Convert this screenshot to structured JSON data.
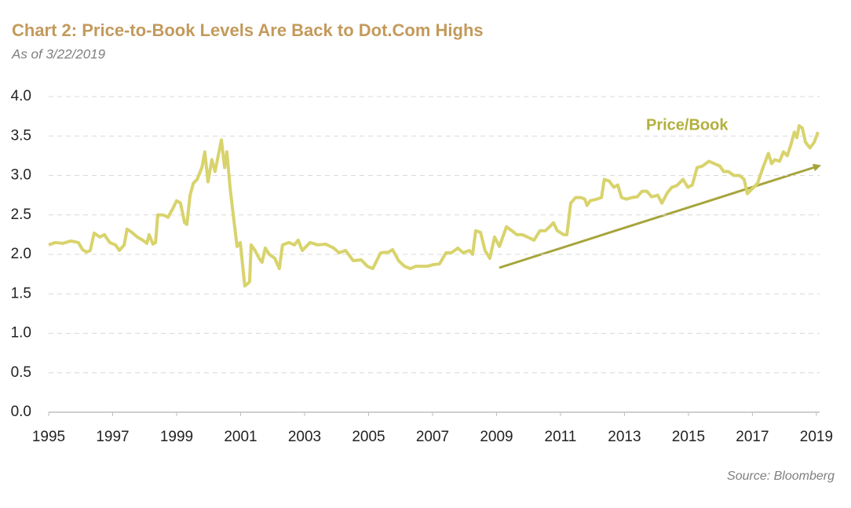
{
  "chart_data": {
    "type": "line",
    "title": "Chart 2: Price-to-Book Levels Are Back to Dot.Com Highs",
    "subtitle": "As of 3/22/2019",
    "source": "Source: Bloomberg",
    "annotation": "Price/Book",
    "series": [
      {
        "name": "Price/Book",
        "color": "#d8d36c",
        "x": [
          1995.0,
          1995.2,
          1995.44,
          1995.69,
          1995.93,
          1996.06,
          1996.18,
          1996.3,
          1996.42,
          1996.6,
          1996.74,
          1996.91,
          1997.09,
          1997.21,
          1997.36,
          1997.45,
          1997.6,
          1997.77,
          1997.94,
          1998.07,
          1998.14,
          1998.26,
          1998.34,
          1998.41,
          1998.58,
          1998.73,
          1998.88,
          1999.0,
          1999.12,
          1999.25,
          1999.32,
          1999.42,
          1999.52,
          1999.64,
          1999.79,
          1999.88,
          1999.98,
          2000.1,
          2000.2,
          2000.3,
          2000.4,
          2000.5,
          2000.57,
          2000.67,
          2000.77,
          2000.89,
          2000.99,
          2001.13,
          2001.28,
          2001.33,
          2001.45,
          2001.58,
          2001.67,
          2001.77,
          2001.9,
          2002.07,
          2002.21,
          2002.31,
          2002.51,
          2002.68,
          2002.8,
          2002.93,
          2003.17,
          2003.42,
          2003.66,
          2003.91,
          2004.08,
          2004.28,
          2004.52,
          2004.77,
          2004.96,
          2005.13,
          2005.38,
          2005.63,
          2005.75,
          2005.94,
          2006.12,
          2006.31,
          2006.48,
          2006.85,
          2007.02,
          2007.22,
          2007.42,
          2007.59,
          2007.79,
          2007.96,
          2008.15,
          2008.25,
          2008.35,
          2008.5,
          2008.64,
          2008.79,
          2008.94,
          2009.09,
          2009.31,
          2009.48,
          2009.63,
          2009.8,
          2009.97,
          2010.17,
          2010.36,
          2010.53,
          2010.66,
          2010.78,
          2010.9,
          2011.1,
          2011.2,
          2011.32,
          2011.47,
          2011.64,
          2011.76,
          2011.83,
          2011.93,
          2012.13,
          2012.28,
          2012.37,
          2012.52,
          2012.67,
          2012.79,
          2012.91,
          2013.06,
          2013.23,
          2013.4,
          2013.55,
          2013.7,
          2013.85,
          2014.04,
          2014.17,
          2014.34,
          2014.48,
          2014.63,
          2014.83,
          2014.98,
          2015.12,
          2015.27,
          2015.44,
          2015.64,
          2015.81,
          2015.98,
          2016.1,
          2016.25,
          2016.42,
          2016.6,
          2016.74,
          2016.84,
          2016.99,
          2017.16,
          2017.33,
          2017.5,
          2017.6,
          2017.7,
          2017.85,
          2017.97,
          2018.09,
          2018.21,
          2018.31,
          2018.39,
          2018.46,
          2018.56,
          2018.66,
          2018.8,
          2018.93,
          2019.05
        ],
        "values": [
          2.12,
          2.15,
          2.14,
          2.17,
          2.15,
          2.06,
          2.03,
          2.05,
          2.27,
          2.22,
          2.25,
          2.15,
          2.12,
          2.05,
          2.12,
          2.32,
          2.28,
          2.22,
          2.18,
          2.14,
          2.25,
          2.13,
          2.15,
          2.5,
          2.5,
          2.47,
          2.58,
          2.68,
          2.65,
          2.4,
          2.38,
          2.75,
          2.9,
          2.95,
          3.1,
          3.3,
          2.92,
          3.2,
          3.05,
          3.25,
          3.45,
          3.1,
          3.3,
          2.85,
          2.5,
          2.1,
          2.15,
          1.6,
          1.65,
          2.12,
          2.05,
          1.95,
          1.9,
          2.08,
          2.0,
          1.95,
          1.82,
          2.12,
          2.15,
          2.12,
          2.18,
          2.05,
          2.15,
          2.12,
          2.13,
          2.08,
          2.02,
          2.05,
          1.92,
          1.93,
          1.85,
          1.82,
          2.02,
          2.03,
          2.06,
          1.92,
          1.85,
          1.82,
          1.85,
          1.85,
          1.87,
          1.88,
          2.02,
          2.02,
          2.08,
          2.02,
          2.05,
          2.0,
          2.3,
          2.28,
          2.05,
          1.95,
          2.22,
          2.1,
          2.35,
          2.3,
          2.25,
          2.25,
          2.22,
          2.18,
          2.3,
          2.3,
          2.35,
          2.4,
          2.3,
          2.25,
          2.25,
          2.65,
          2.72,
          2.72,
          2.7,
          2.62,
          2.68,
          2.7,
          2.72,
          2.95,
          2.93,
          2.85,
          2.88,
          2.72,
          2.7,
          2.72,
          2.73,
          2.8,
          2.8,
          2.73,
          2.75,
          2.65,
          2.78,
          2.85,
          2.87,
          2.95,
          2.85,
          2.88,
          3.1,
          3.12,
          3.18,
          3.15,
          3.12,
          3.05,
          3.05,
          3.0,
          3.0,
          2.95,
          2.77,
          2.83,
          2.9,
          3.1,
          3.28,
          3.15,
          3.2,
          3.18,
          3.3,
          3.25,
          3.4,
          3.55,
          3.48,
          3.63,
          3.6,
          3.42,
          3.35,
          3.42,
          3.55
        ]
      }
    ],
    "xlim": [
      1995,
      2019.1
    ],
    "xticks": [
      1995,
      1997,
      1999,
      2001,
      2003,
      2005,
      2007,
      2009,
      2011,
      2013,
      2015,
      2017,
      2019
    ],
    "ylim": [
      0,
      4
    ],
    "yticks": [
      {
        "value": 0,
        "label": "0.0"
      },
      {
        "value": 0.5,
        "label": "0.5"
      },
      {
        "value": 1,
        "label": "1.0"
      },
      {
        "value": 1.5,
        "label": "1.5"
      },
      {
        "value": 2,
        "label": "2.0"
      },
      {
        "value": 2.5,
        "label": "2.5"
      },
      {
        "value": 3,
        "label": "3.0"
      },
      {
        "value": 3.5,
        "label": "3.5"
      },
      {
        "value": 4,
        "label": "4.0"
      }
    ],
    "grid": true
  }
}
